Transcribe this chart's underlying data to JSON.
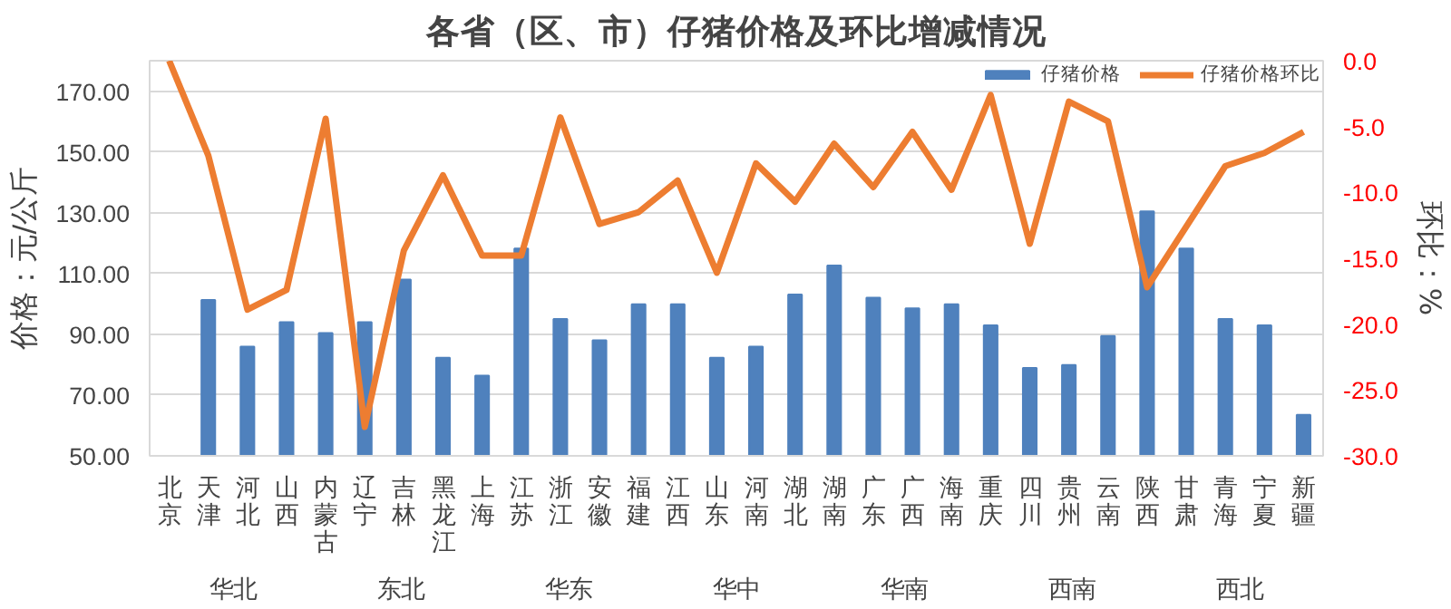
{
  "chart_data": {
    "type": "bar",
    "title": "各省（区、市）仔猪价格及环比增减情况",
    "ylabel": "价格：元/公斤",
    "y2label": "环比：%",
    "categories": [
      "北京",
      "天津",
      "河北",
      "山西",
      "内蒙古",
      "辽宁",
      "吉林",
      "黑龙江",
      "上海",
      "江苏",
      "浙江",
      "安徽",
      "福建",
      "江西",
      "山东",
      "河南",
      "湖北",
      "湖南",
      "广东",
      "广西",
      "海南",
      "重庆",
      "四川",
      "贵州",
      "云南",
      "陕西",
      "甘肃",
      "青海",
      "宁夏",
      "新疆"
    ],
    "series": [
      {
        "name": "仔猪价格",
        "color": "#4f81bd",
        "values": [
          null,
          101.3,
          85.9,
          94,
          90.4,
          94,
          108,
          82.3,
          76.4,
          118.2,
          95,
          88,
          99.9,
          99.9,
          82.3,
          85.9,
          103.1,
          112.6,
          102,
          98.5,
          99.9,
          92.9,
          78.9,
          79.9,
          89.4,
          130.4,
          118.2,
          95,
          92.9,
          63.5
        ]
      },
      {
        "name": "仔猪价格环比",
        "type": "line",
        "axis": "y2",
        "color": "#ed7d31",
        "values": [
          0.0,
          -7.2,
          -18.9,
          -17.4,
          -4.4,
          -27.8,
          -14.4,
          -8.7,
          -14.8,
          -14.8,
          -4.3,
          -12.4,
          -11.5,
          -9.1,
          -16.1,
          -7.8,
          -10.7,
          -6.3,
          -9.6,
          -5.4,
          -9.8,
          -2.6,
          -13.9,
          -3.1,
          -4.6,
          -17.2,
          -12.6,
          -8.0,
          -7.0,
          -5.4
        ]
      }
    ],
    "ylim": [
      50,
      180
    ],
    "yticks": [
      {
        "value": 50,
        "label": "50.00"
      },
      {
        "value": 70,
        "label": "70.00"
      },
      {
        "value": 90,
        "label": "90.00"
      },
      {
        "value": 110,
        "label": "110.00"
      },
      {
        "value": 130,
        "label": "130.00"
      },
      {
        "value": 150,
        "label": "150.00"
      },
      {
        "value": 170,
        "label": "170.00"
      }
    ],
    "y2lim": [
      -30,
      0
    ],
    "y2ticks": [
      {
        "value": 0,
        "label": "0.0"
      },
      {
        "value": -5,
        "label": "-5.0"
      },
      {
        "value": -10,
        "label": "-10.0"
      },
      {
        "value": -15,
        "label": "-15.0"
      },
      {
        "value": -20,
        "label": "-20.0"
      },
      {
        "value": -25,
        "label": "-25.0"
      },
      {
        "value": -30,
        "label": "-30.0"
      }
    ],
    "annotations": [
      "华北",
      "东北",
      "华东",
      "华中",
      "华南",
      "西南",
      "西北"
    ],
    "grid": "y",
    "legend": "top right",
    "marker": "none",
    "line_style": "solid"
  }
}
